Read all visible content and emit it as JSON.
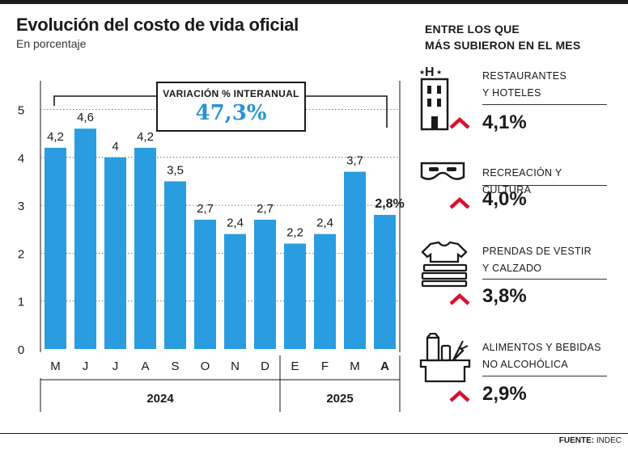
{
  "header": {
    "title": "Evolución del costo de vida oficial",
    "subtitle": "En porcentaje"
  },
  "interannual": {
    "label": "VARIACIÓN % INTERANUAL",
    "value": "47,3%"
  },
  "chart_data": {
    "type": "bar",
    "categories": [
      "M",
      "J",
      "J",
      "A",
      "S",
      "O",
      "N",
      "D",
      "E",
      "F",
      "M",
      "A"
    ],
    "values": [
      4.2,
      4.6,
      4.0,
      4.2,
      3.5,
      2.7,
      2.4,
      2.7,
      2.2,
      2.4,
      3.7,
      2.8
    ],
    "value_labels": [
      "4,2",
      "4,6",
      "4",
      "4,2",
      "3,5",
      "2,7",
      "2,4",
      "2,7",
      "2,2",
      "2,4",
      "3,7",
      "2,8%"
    ],
    "highlight_index": 11,
    "year_groups": [
      {
        "label": "2024",
        "start": 0,
        "end": 7
      },
      {
        "label": "2025",
        "start": 8,
        "end": 11
      }
    ],
    "yticks": [
      0,
      1,
      2,
      3,
      4,
      5
    ],
    "ylim": [
      0,
      5.6
    ],
    "grid": true,
    "bar_color": "#2a9de0"
  },
  "sidebar": {
    "title_line1": "ENTRE LOS QUE",
    "title_line2": "MÁS SUBIERON EN EL MES",
    "items": [
      {
        "label": "RESTAURANTES\nY HOTELES",
        "value": "4,1%",
        "icon": "hotel-icon"
      },
      {
        "label": "RECREACIÓN Y CULTURA",
        "value": "4,0%",
        "icon": "mask-icon"
      },
      {
        "label": "PRENDAS DE VESTIR\nY CALZADO",
        "value": "3,8%",
        "icon": "clothes-icon"
      },
      {
        "label": "ALIMENTOS Y BEBIDAS\nNO ALCOHÓLICA",
        "value": "2,9%",
        "icon": "groceries-icon"
      }
    ],
    "arrow_color": "#d8102e"
  },
  "footer": {
    "source_label": "FUENTE:",
    "source_value": "INDEC"
  }
}
